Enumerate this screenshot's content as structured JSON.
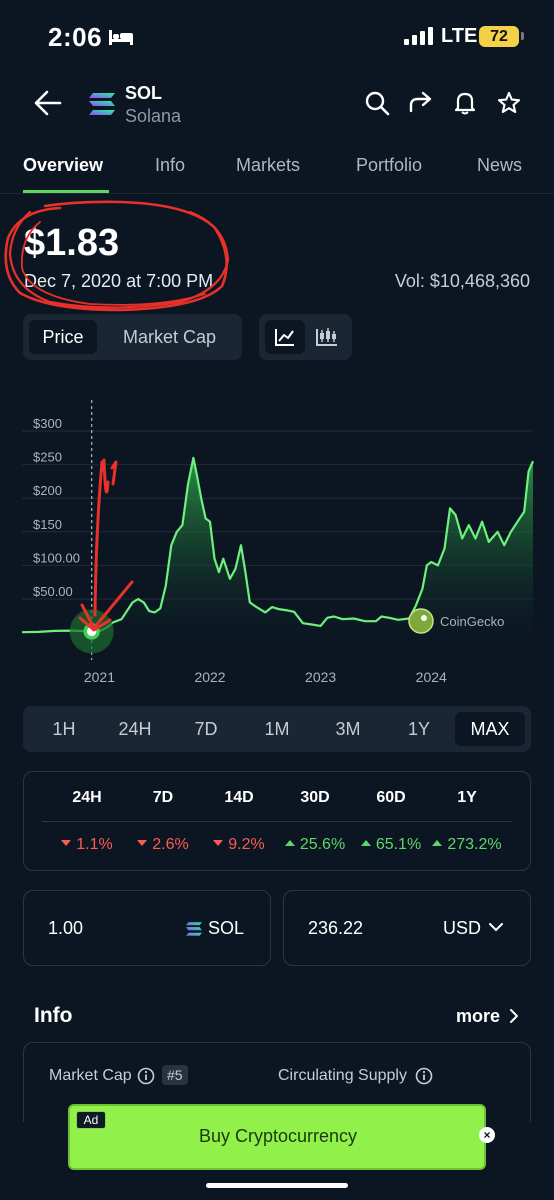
{
  "status_bar": {
    "time": "2:06",
    "network": "LTE",
    "battery": "72"
  },
  "header": {
    "symbol": "SOL",
    "name": "Solana"
  },
  "tabs": [
    "Overview",
    "Info",
    "Markets",
    "Portfolio",
    "News"
  ],
  "price": {
    "value": "$1.83",
    "date": "Dec 7, 2020 at 7:00 PM",
    "volume": "Vol: $10,468,360"
  },
  "toggles": {
    "price": "Price",
    "market_cap": "Market Cap"
  },
  "chart_data": {
    "type": "area",
    "y_tick_labels": [
      "$300",
      "$250",
      "$200",
      "$150",
      "$100.00",
      "$50.00"
    ],
    "y_ticks": [
      300,
      250,
      200,
      150,
      100,
      50
    ],
    "x_tick_labels": [
      "2021",
      "2022",
      "2023",
      "2024"
    ],
    "watermark": "CoinGecko",
    "ylim": [
      0,
      320
    ],
    "x_range": [
      2020.3,
      2024.92
    ],
    "marker": {
      "x": 2020.93,
      "y": 1.83
    },
    "points": [
      [
        2020.3,
        0.6
      ],
      [
        2020.45,
        1.0
      ],
      [
        2020.6,
        2.5
      ],
      [
        2020.75,
        3.0
      ],
      [
        2020.93,
        1.83
      ],
      [
        2021.0,
        2.0
      ],
      [
        2021.08,
        9
      ],
      [
        2021.12,
        15
      ],
      [
        2021.2,
        20
      ],
      [
        2021.3,
        45
      ],
      [
        2021.35,
        50
      ],
      [
        2021.4,
        45
      ],
      [
        2021.45,
        32
      ],
      [
        2021.5,
        30
      ],
      [
        2021.55,
        36
      ],
      [
        2021.6,
        70
      ],
      [
        2021.65,
        130
      ],
      [
        2021.7,
        150
      ],
      [
        2021.75,
        160
      ],
      [
        2021.8,
        220
      ],
      [
        2021.85,
        260
      ],
      [
        2021.88,
        235
      ],
      [
        2021.92,
        200
      ],
      [
        2021.96,
        170
      ],
      [
        2022.0,
        165
      ],
      [
        2022.04,
        110
      ],
      [
        2022.08,
        90
      ],
      [
        2022.12,
        110
      ],
      [
        2022.18,
        80
      ],
      [
        2022.23,
        95
      ],
      [
        2022.28,
        130
      ],
      [
        2022.32,
        90
      ],
      [
        2022.36,
        45
      ],
      [
        2022.42,
        38
      ],
      [
        2022.5,
        30
      ],
      [
        2022.56,
        38
      ],
      [
        2022.62,
        35
      ],
      [
        2022.7,
        33
      ],
      [
        2022.76,
        31
      ],
      [
        2022.84,
        14
      ],
      [
        2022.92,
        12
      ],
      [
        2023.0,
        10
      ],
      [
        2023.06,
        22
      ],
      [
        2023.12,
        24
      ],
      [
        2023.2,
        20
      ],
      [
        2023.3,
        21
      ],
      [
        2023.4,
        17
      ],
      [
        2023.5,
        17
      ],
      [
        2023.55,
        24
      ],
      [
        2023.62,
        22
      ],
      [
        2023.7,
        19
      ],
      [
        2023.8,
        21
      ],
      [
        2023.86,
        40
      ],
      [
        2023.92,
        65
      ],
      [
        2023.96,
        100
      ],
      [
        2024.0,
        105
      ],
      [
        2024.06,
        100
      ],
      [
        2024.12,
        125
      ],
      [
        2024.17,
        185
      ],
      [
        2024.22,
        175
      ],
      [
        2024.28,
        140
      ],
      [
        2024.34,
        160
      ],
      [
        2024.4,
        140
      ],
      [
        2024.46,
        165
      ],
      [
        2024.52,
        135
      ],
      [
        2024.6,
        150
      ],
      [
        2024.66,
        130
      ],
      [
        2024.72,
        150
      ],
      [
        2024.78,
        165
      ],
      [
        2024.84,
        180
      ],
      [
        2024.88,
        240
      ],
      [
        2024.92,
        255
      ]
    ]
  },
  "ranges": [
    "1H",
    "24H",
    "7D",
    "1M",
    "3M",
    "1Y",
    "MAX"
  ],
  "performance": {
    "headers": [
      "24H",
      "7D",
      "14D",
      "30D",
      "60D",
      "1Y"
    ],
    "values": [
      "1.1%",
      "2.6%",
      "9.2%",
      "25.6%",
      "65.1%",
      "273.2%"
    ],
    "directions": [
      "down",
      "down",
      "down",
      "up",
      "up",
      "up"
    ]
  },
  "converter": {
    "amount": "1.00",
    "coin": "SOL",
    "fiat_amount": "236.22",
    "fiat": "USD"
  },
  "info": {
    "title": "Info",
    "more": "more",
    "market_cap_label": "Market Cap",
    "rank": "#5",
    "supply_label": "Circulating Supply"
  },
  "ad": {
    "badge": "Ad",
    "text": "Buy Cryptocurrency"
  },
  "colors": {
    "background": "#0b1622",
    "accent_green": "#5cd65c",
    "negative": "#ff5a54",
    "annotation_red": "#e8312a"
  }
}
